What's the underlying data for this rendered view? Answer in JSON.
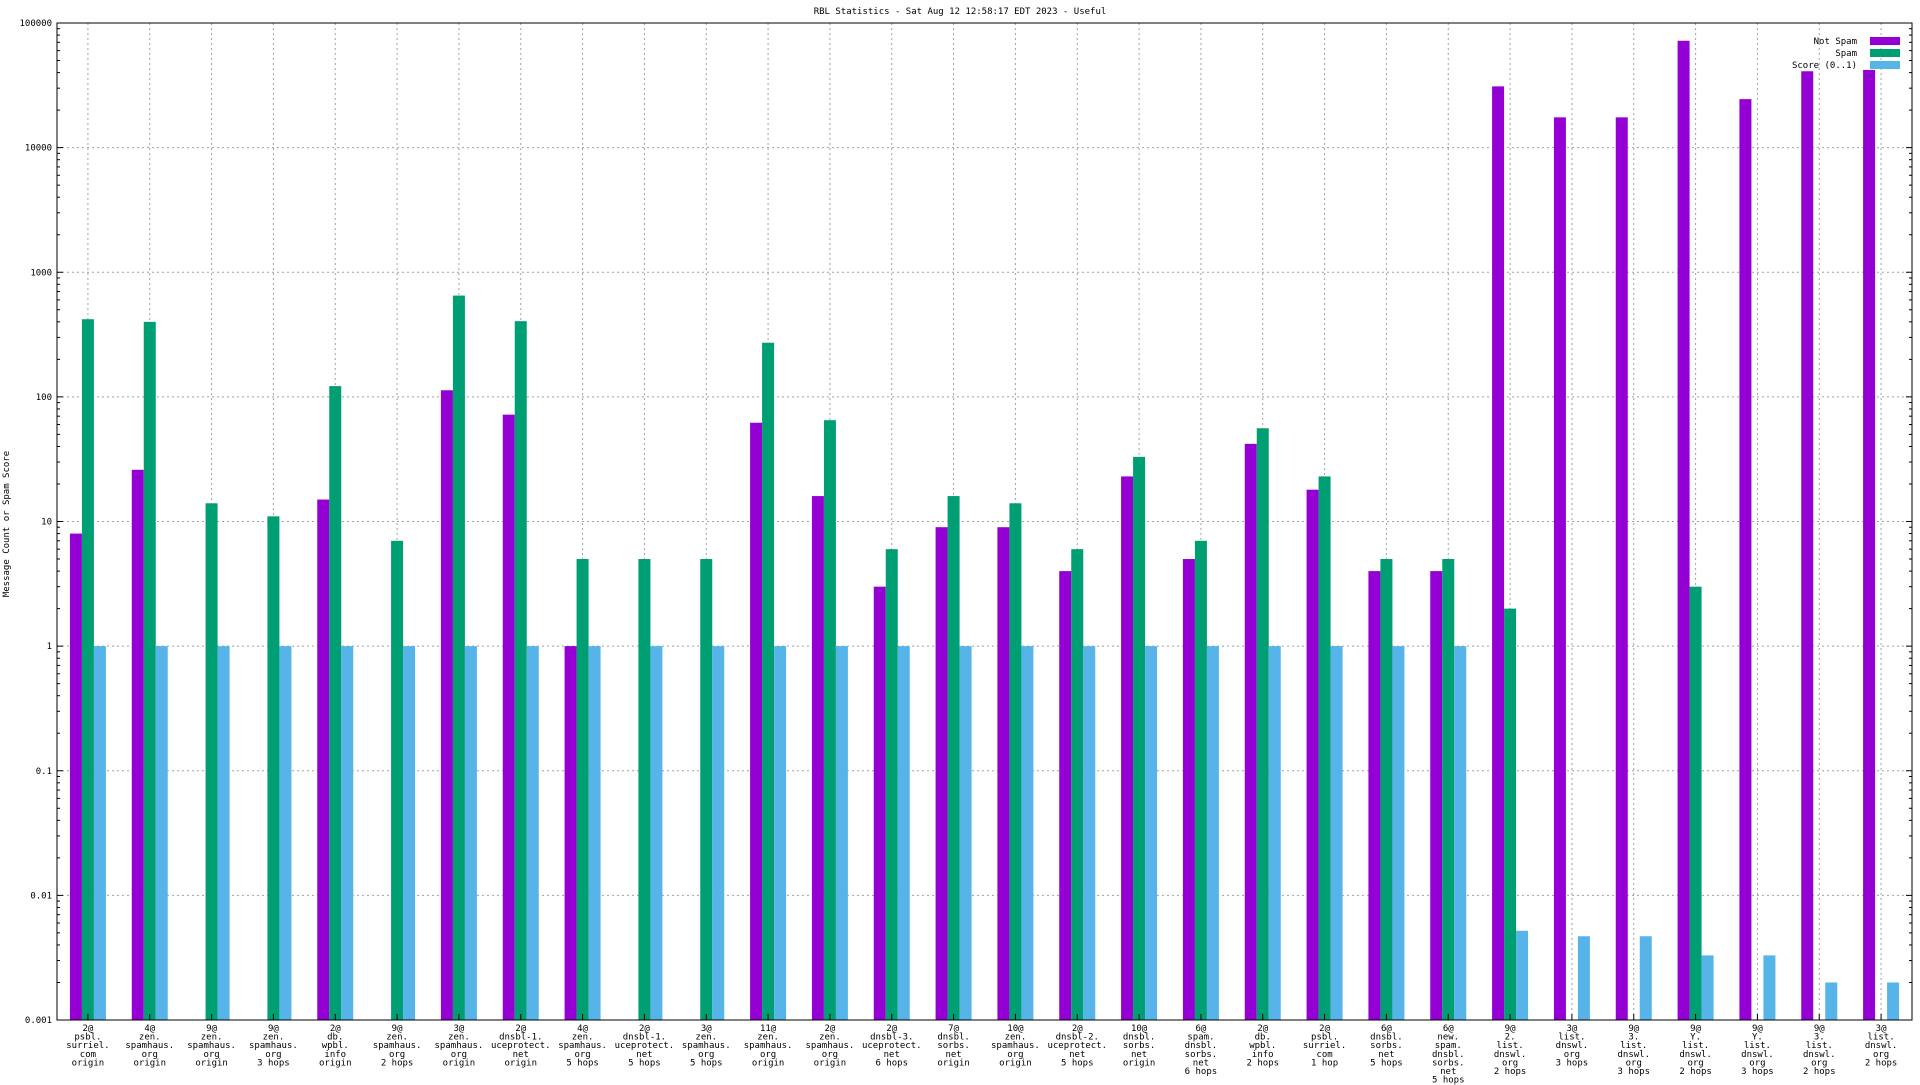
{
  "chart_data": {
    "type": "bar",
    "title": "RBL Statistics - Sat Aug 12 12:58:17 EDT 2023 - Useful",
    "xlabel": "",
    "ylabel": "Message Count or Spam Score",
    "yscale": "log",
    "ylim": [
      0.001,
      100000
    ],
    "yticks": [
      "0.001",
      "0.01",
      "0.1",
      "1",
      "10",
      "100",
      "1000",
      "10000",
      "100000"
    ],
    "grid": true,
    "legend_position": "top-right",
    "categories": [
      [
        "2@",
        "psbl.",
        "surriel.",
        "com",
        "origin"
      ],
      [
        "4@",
        "zen.",
        "spamhaus.",
        "org",
        "origin"
      ],
      [
        "9@",
        "zen.",
        "spamhaus.",
        "org",
        "origin"
      ],
      [
        "9@",
        "zen.",
        "spamhaus.",
        "org",
        "3 hops"
      ],
      [
        "2@",
        "db.",
        "wpbl.",
        "info",
        "origin"
      ],
      [
        "9@",
        "zen.",
        "spamhaus.",
        "org",
        "2 hops"
      ],
      [
        "3@",
        "zen.",
        "spamhaus.",
        "org",
        "origin"
      ],
      [
        "2@",
        "dnsbl-1.",
        "uceprotect.",
        "net",
        "origin"
      ],
      [
        "4@",
        "zen.",
        "spamhaus.",
        "org",
        "5 hops"
      ],
      [
        "2@",
        "dnsbl-1.",
        "uceprotect.",
        "net",
        "5 hops"
      ],
      [
        "3@",
        "zen.",
        "spamhaus.",
        "org",
        "5 hops"
      ],
      [
        "11@",
        "zen.",
        "spamhaus.",
        "org",
        "origin"
      ],
      [
        "2@",
        "zen.",
        "spamhaus.",
        "org",
        "origin"
      ],
      [
        "2@",
        "dnsbl-3.",
        "uceprotect.",
        "net",
        "6 hops"
      ],
      [
        "7@",
        "dnsbl.",
        "sorbs.",
        "net",
        "origin"
      ],
      [
        "10@",
        "zen.",
        "spamhaus.",
        "org",
        "origin"
      ],
      [
        "2@",
        "dnsbl-2.",
        "uceprotect.",
        "net",
        "5 hops"
      ],
      [
        "10@",
        "dnsbl.",
        "sorbs.",
        "net",
        "origin"
      ],
      [
        "6@",
        "spam.",
        "dnsbl.",
        "sorbs.",
        "net",
        "6 hops"
      ],
      [
        "2@",
        "db.",
        "wpbl.",
        "info",
        "2 hops"
      ],
      [
        "2@",
        "psbl.",
        "surriel.",
        "com",
        "1 hop"
      ],
      [
        "6@",
        "dnsbl.",
        "sorbs.",
        "net",
        "5 hops"
      ],
      [
        "6@",
        "new.",
        "spam.",
        "dnsbl.",
        "sorbs.",
        "net",
        "5 hops"
      ],
      [
        "9@",
        "2.",
        "list.",
        "dnswl.",
        "org",
        "2 hops"
      ],
      [
        "3@",
        "list.",
        "dnswl.",
        "org",
        "3 hops"
      ],
      [
        "9@",
        "3.",
        "list.",
        "dnswl.",
        "org",
        "3 hops"
      ],
      [
        "9@",
        "Y.",
        "list.",
        "dnswl.",
        "org",
        "2 hops"
      ],
      [
        "9@",
        "Y.",
        "list.",
        "dnswl.",
        "org",
        "3 hops"
      ],
      [
        "9@",
        "3.",
        "list.",
        "dnswl.",
        "org",
        "2 hops"
      ],
      [
        "3@",
        "list.",
        "dnswl.",
        "org",
        "2 hops"
      ]
    ],
    "series": [
      {
        "name": "Not Spam",
        "color": "#9400d3",
        "values": [
          8,
          26,
          null,
          null,
          15,
          null,
          113,
          72,
          1,
          null,
          null,
          62,
          16,
          3,
          9,
          9,
          4,
          23,
          5,
          42,
          18,
          4,
          4,
          31000,
          17500,
          17500,
          72000,
          24500,
          41000,
          42000
        ]
      },
      {
        "name": "Spam",
        "color": "#009e73",
        "values": [
          420,
          400,
          14,
          11,
          122,
          7,
          650,
          405,
          5,
          5,
          5,
          272,
          65,
          6,
          16,
          14,
          6,
          33,
          7,
          56,
          23,
          5,
          5,
          2,
          null,
          null,
          3,
          null,
          null,
          null
        ]
      },
      {
        "name": "Score (0..1)",
        "color": "#56b4e9",
        "values": [
          1,
          1,
          1,
          1,
          1,
          1,
          1,
          1,
          1,
          1,
          1,
          1,
          1,
          1,
          1,
          1,
          1,
          1,
          1,
          1,
          1,
          1,
          1,
          0.0052,
          0.0047,
          0.0047,
          0.0033,
          0.0033,
          0.002,
          0.002
        ]
      }
    ]
  }
}
